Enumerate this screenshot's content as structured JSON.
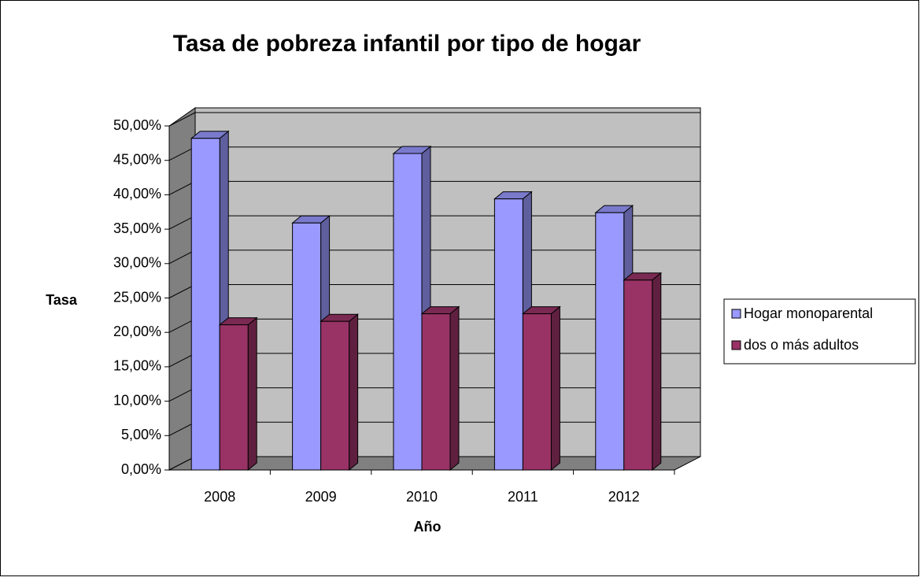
{
  "chart_data": {
    "type": "bar3d",
    "title": "Tasa de pobreza infantil por tipo de hogar",
    "x_label": "Año",
    "y_label": "Tasa",
    "categories": [
      "2008",
      "2009",
      "2010",
      "2011",
      "2012"
    ],
    "series": [
      {
        "name": "Hogar monoparental",
        "color": "#9999ff",
        "values": [
          48.2,
          35.9,
          46.0,
          39.4,
          37.4
        ]
      },
      {
        "name": "dos o más adultos",
        "color": "#993366",
        "values": [
          21.1,
          21.6,
          22.7,
          22.7,
          27.6
        ]
      }
    ],
    "ylim": [
      0,
      50
    ],
    "yticks": [
      {
        "value": 0,
        "label": "0,00%"
      },
      {
        "value": 5,
        "label": "5,00%"
      },
      {
        "value": 10,
        "label": "10,00%"
      },
      {
        "value": 15,
        "label": "15,00%"
      },
      {
        "value": 20,
        "label": "20,00%"
      },
      {
        "value": 25,
        "label": "25,00%"
      },
      {
        "value": 30,
        "label": "30,00%"
      },
      {
        "value": 35,
        "label": "35,00%"
      },
      {
        "value": 40,
        "label": "40,00%"
      },
      {
        "value": 45,
        "label": "45,00%"
      },
      {
        "value": 50,
        "label": "50,00%"
      }
    ],
    "grid": true,
    "legend": "right"
  }
}
